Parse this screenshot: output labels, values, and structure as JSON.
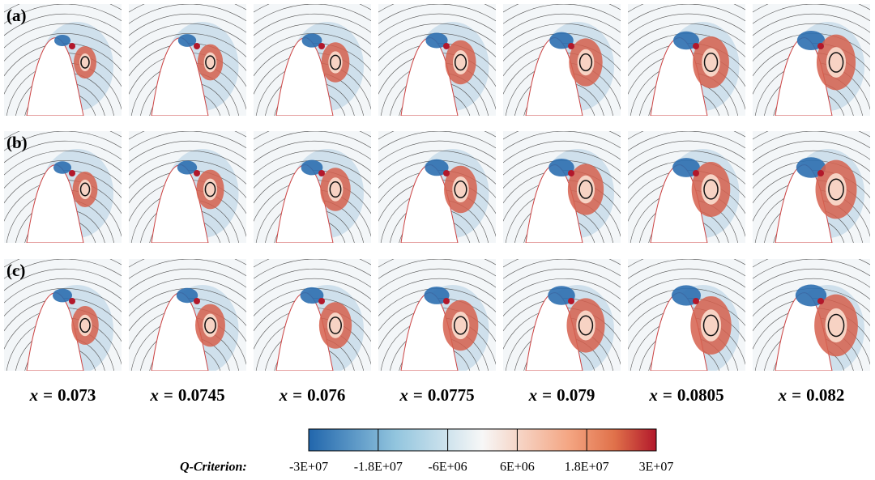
{
  "figure": {
    "rows": [
      "(a)",
      "(b)",
      "(c)"
    ],
    "columns": [
      {
        "symbol": "x",
        "sign": "=",
        "value": "0.073"
      },
      {
        "symbol": "x",
        "sign": "=",
        "value": "0.0745"
      },
      {
        "symbol": "x",
        "sign": "=",
        "value": "0.076"
      },
      {
        "symbol": "x",
        "sign": "=",
        "value": "0.0775"
      },
      {
        "symbol": "x",
        "sign": "=",
        "value": "0.079"
      },
      {
        "symbol": "x",
        "sign": "=",
        "value": "0.0805"
      },
      {
        "symbol": "x",
        "sign": "=",
        "value": "0.082"
      }
    ],
    "colorbar": {
      "title": "Q-Criterion:",
      "ticks": [
        {
          "value": -30000000,
          "label": "-3E+07"
        },
        {
          "value": -18000000,
          "label": "-1.8E+07"
        },
        {
          "value": -6000000,
          "label": "-6E+06"
        },
        {
          "value": 6000000,
          "label": "6E+06"
        },
        {
          "value": 18000000,
          "label": "1.8E+07"
        },
        {
          "value": 30000000,
          "label": "3E+07"
        }
      ]
    }
  }
}
